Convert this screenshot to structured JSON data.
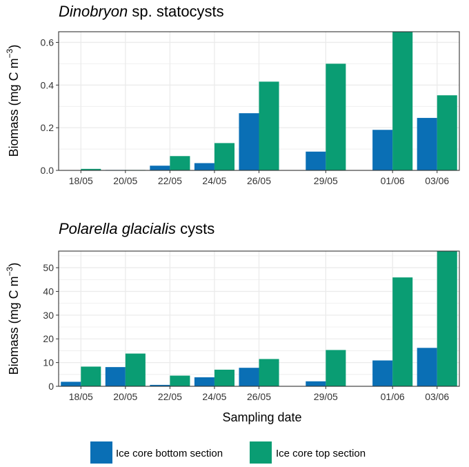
{
  "chart_data": [
    {
      "type": "bar",
      "title_italic": "Dinobryon",
      "title_rest": " sp. statocysts",
      "ylabel": "Biomass (mg C m",
      "ylabel_sup": "−3",
      "ylabel_close": ")",
      "xlabel": "",
      "ylim": [
        0,
        0.65
      ],
      "yticks": [
        0.0,
        0.2,
        0.4,
        0.6
      ],
      "ytick_labels": [
        "0.0",
        "0.2",
        "0.4",
        "0.6"
      ],
      "x": [
        0,
        2,
        4,
        6,
        8,
        11,
        14,
        16
      ],
      "xlim": [
        -1,
        17
      ],
      "categories": [
        "18/05",
        "20/05",
        "22/05",
        "24/05",
        "26/05",
        "29/05",
        "01/06",
        "03/06"
      ],
      "series": [
        {
          "name": "Ice core bottom section",
          "values": [
            0.001,
            0.002,
            0.022,
            0.034,
            0.268,
            0.088,
            0.19,
            0.246
          ]
        },
        {
          "name": "Ice core top section",
          "values": [
            0.007,
            0.002,
            0.067,
            0.128,
            0.416,
            0.5,
            0.65,
            0.352
          ]
        }
      ]
    },
    {
      "type": "bar",
      "title_italic": "Polarella glacialis",
      "title_rest": " cysts",
      "ylabel": "Biomass (mg C m",
      "ylabel_sup": "−3",
      "ylabel_close": ")",
      "xlabel": "Sampling date",
      "ylim": [
        0,
        57
      ],
      "yticks": [
        0,
        10,
        20,
        30,
        40,
        50
      ],
      "ytick_labels": [
        "0",
        "10",
        "20",
        "30",
        "40",
        "50"
      ],
      "x": [
        0,
        2,
        4,
        6,
        8,
        11,
        14,
        16
      ],
      "xlim": [
        -1,
        17
      ],
      "categories": [
        "18/05",
        "20/05",
        "22/05",
        "24/05",
        "26/05",
        "29/05",
        "01/06",
        "03/06"
      ],
      "series": [
        {
          "name": "Ice core bottom section",
          "values": [
            1.9,
            8.1,
            0.6,
            3.8,
            7.8,
            2.1,
            10.9,
            16.2
          ]
        },
        {
          "name": "Ice core top section",
          "values": [
            8.3,
            13.8,
            4.5,
            7.0,
            11.5,
            15.3,
            45.9,
            57.0
          ]
        }
      ]
    }
  ],
  "legend": {
    "items": [
      {
        "label": "Ice core bottom section",
        "color": "#0a6fb5"
      },
      {
        "label": "Ice core top section",
        "color": "#0a9d73"
      }
    ]
  },
  "colors": {
    "bottom": "#0a6fb5",
    "top": "#0a9d73",
    "grid": "#ebebeb",
    "frame": "#333333"
  }
}
